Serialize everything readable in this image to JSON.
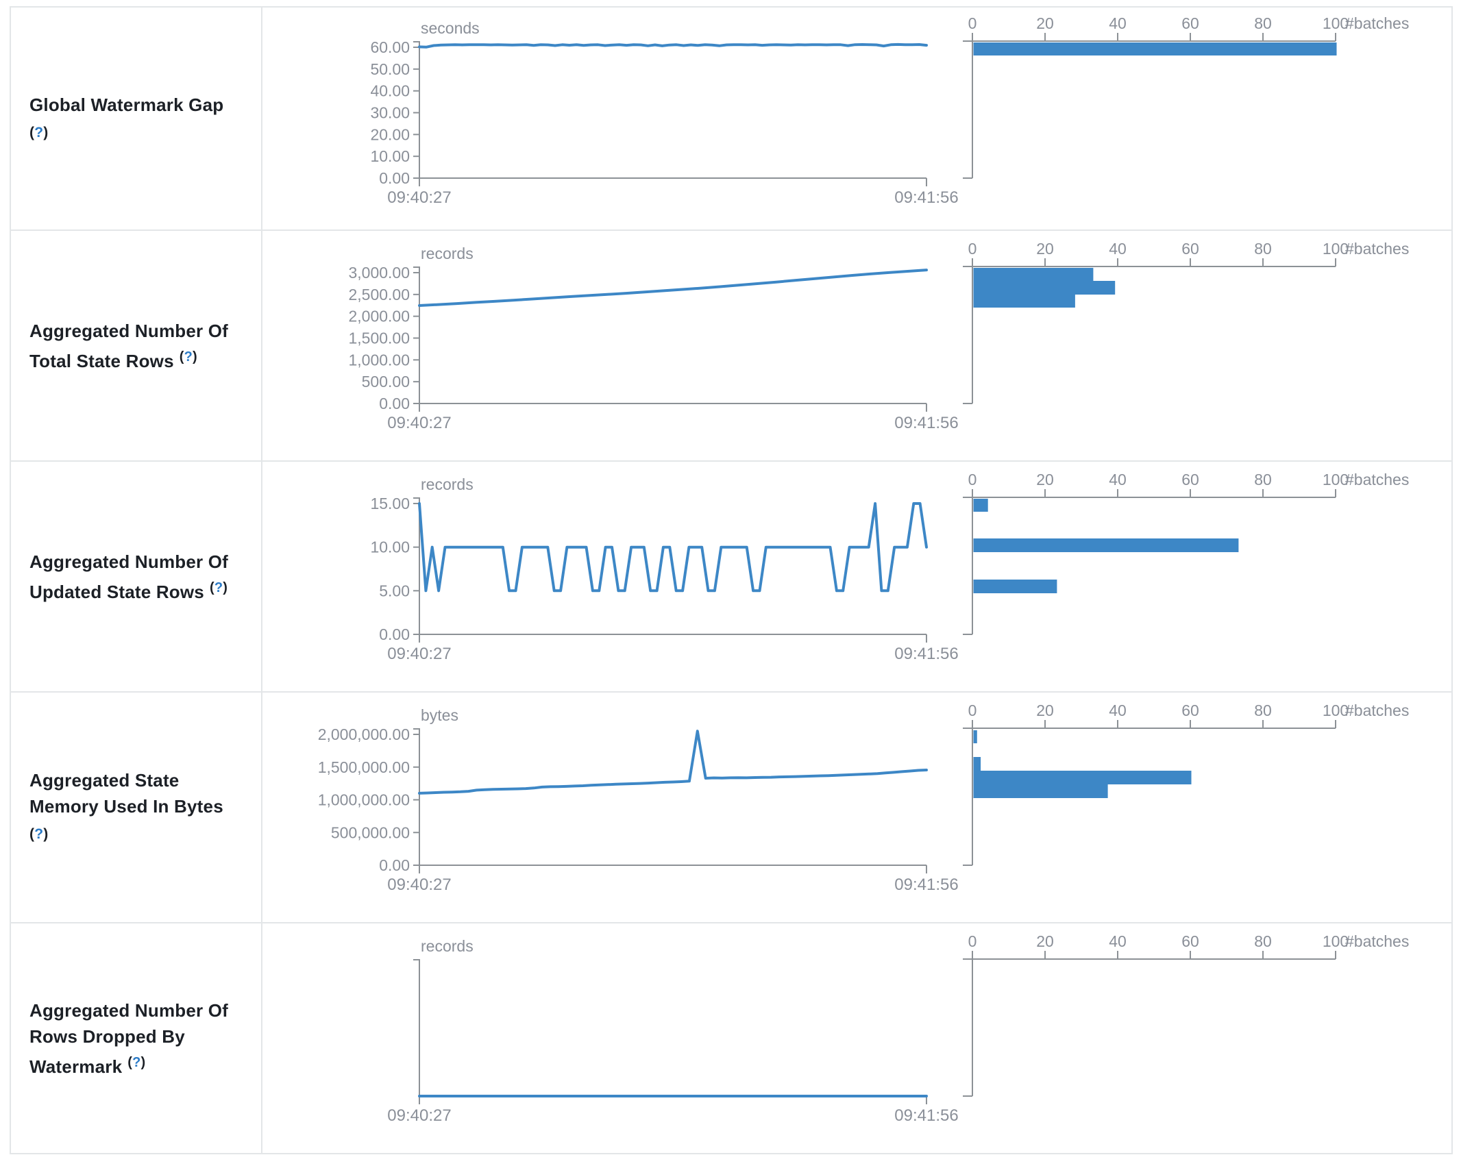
{
  "colors": {
    "accent": "#3d87c6",
    "axis": "#8c9196",
    "tick_text": "#8a8f98",
    "label_text": "#1c2026",
    "help_question": "#2b7bc7",
    "border": "#e3e6e8"
  },
  "help_mark": "?",
  "rows": [
    {
      "label_lines": [
        "Global Watermark Gap"
      ],
      "help_inline": false
    },
    {
      "label_lines": [
        "Aggregated Number Of",
        "Total State Rows"
      ],
      "help_inline": true
    },
    {
      "label_lines": [
        "Aggregated Number Of",
        "Updated State Rows"
      ],
      "help_inline": true
    },
    {
      "label_lines": [
        "Aggregated State",
        "Memory Used In Bytes"
      ],
      "help_inline": false
    },
    {
      "label_lines": [
        "Aggregated Number Of",
        "Rows Dropped By",
        "Watermark"
      ],
      "help_inline": true
    }
  ],
  "chart_data": [
    {
      "type": "line",
      "title": "Global Watermark Gap",
      "unit": "seconds",
      "x_start": "09:40:27",
      "x_end": "09:41:56",
      "y_tick_labels": [
        "60.00",
        "50.00",
        "40.00",
        "30.00",
        "20.00",
        "10.00",
        "0.00"
      ],
      "ymax": 60,
      "values": [
        60.2,
        60.1,
        60.8,
        61.0,
        61.1,
        61.15,
        61.1,
        61.15,
        61.2,
        61.15,
        61.1,
        61.15,
        61.1,
        61.05,
        61.1,
        61.15,
        60.85,
        61.2,
        61.1,
        60.8,
        61.15,
        60.95,
        61.15,
        60.85,
        61.1,
        61.15,
        60.8,
        61.05,
        61.2,
        60.9,
        61.15,
        61.1,
        60.7,
        61.1,
        60.65,
        61.05,
        61.15,
        60.8,
        61.1,
        60.85,
        61.15,
        61.0,
        60.7,
        61.1,
        61.15,
        61.2,
        61.1,
        61.15,
        60.9,
        61.1,
        61.15,
        61.1,
        61.05,
        61.15,
        61.1,
        61.2,
        61.15,
        61.1,
        61.2,
        61.15,
        60.75,
        61.2,
        61.25,
        61.2,
        61.1,
        60.6,
        61.15,
        61.3,
        61.2,
        61.15,
        61.25,
        60.9
      ],
      "histogram": {
        "axis_ticks": [
          "0",
          "20",
          "40",
          "60",
          "80",
          "100"
        ],
        "axis_max": 100,
        "axis_label": "#batches",
        "bars": [
          {
            "count": 100,
            "top_pct": 1,
            "height_pct": 9.5
          }
        ]
      }
    },
    {
      "type": "line",
      "title": "Aggregated Number Of Total State Rows",
      "unit": "records",
      "x_start": "09:40:27",
      "x_end": "09:41:56",
      "y_tick_labels": [
        "3,000.00",
        "2,500.00",
        "2,000.00",
        "1,500.00",
        "1,000.00",
        "500.00",
        "0.00"
      ],
      "ymax": 3000,
      "values": [
        2246,
        2268,
        2292,
        2318,
        2342,
        2368,
        2396,
        2424,
        2450,
        2475,
        2500,
        2528,
        2556,
        2585,
        2615,
        2645,
        2678,
        2712,
        2748,
        2785,
        2822,
        2860,
        2898,
        2935,
        2970,
        3002,
        3032,
        3062
      ],
      "histogram": {
        "axis_ticks": [
          "0",
          "20",
          "40",
          "60",
          "80",
          "100"
        ],
        "axis_max": 100,
        "axis_label": "#batches",
        "bars": [
          {
            "count": 33,
            "top_pct": 1,
            "height_pct": 9.5
          },
          {
            "count": 39,
            "top_pct": 10.5,
            "height_pct": 10
          },
          {
            "count": 28,
            "top_pct": 20.5,
            "height_pct": 9.5
          }
        ]
      }
    },
    {
      "type": "line",
      "title": "Aggregated Number Of Updated State Rows",
      "unit": "records",
      "x_start": "09:40:27",
      "x_end": "09:41:56",
      "y_tick_labels": [
        "15.00",
        "10.00",
        "5.00",
        "0.00"
      ],
      "ymax": 15,
      "values": [
        15,
        5,
        10,
        5,
        10,
        10,
        10,
        10,
        10,
        10,
        10,
        10,
        10,
        10,
        5,
        5,
        10,
        10,
        10,
        10,
        10,
        5,
        5,
        10,
        10,
        10,
        10,
        5,
        5,
        10,
        10,
        5,
        5,
        10,
        10,
        10,
        5,
        5,
        10,
        10,
        5,
        5,
        10,
        10,
        10,
        5,
        5,
        10,
        10,
        10,
        10,
        10,
        5,
        5,
        10,
        10,
        10,
        10,
        10,
        10,
        10,
        10,
        10,
        10,
        10,
        5,
        5,
        10,
        10,
        10,
        10,
        15,
        5,
        5,
        10,
        10,
        10,
        15,
        15,
        10
      ],
      "histogram": {
        "axis_ticks": [
          "0",
          "20",
          "40",
          "60",
          "80",
          "100"
        ],
        "axis_max": 100,
        "axis_label": "#batches",
        "bars": [
          {
            "count": 4,
            "top_pct": 1,
            "height_pct": 9.5
          },
          {
            "count": 73,
            "top_pct": 30,
            "height_pct": 10
          },
          {
            "count": 23,
            "top_pct": 60,
            "height_pct": 10
          }
        ]
      }
    },
    {
      "type": "line",
      "title": "Aggregated State Memory Used In Bytes",
      "unit": "bytes",
      "x_start": "09:40:27",
      "x_end": "09:41:56",
      "y_tick_labels": [
        "2,000,000.00",
        "1,500,000.00",
        "1,000,000.00",
        "500,000.00",
        "0.00"
      ],
      "ymax": 2000000,
      "values": [
        1100000,
        1105000,
        1110000,
        1115000,
        1118000,
        1122000,
        1130000,
        1148000,
        1155000,
        1160000,
        1162000,
        1165000,
        1168000,
        1172000,
        1180000,
        1195000,
        1200000,
        1202000,
        1205000,
        1210000,
        1215000,
        1222000,
        1228000,
        1232000,
        1238000,
        1242000,
        1246000,
        1250000,
        1255000,
        1262000,
        1268000,
        1272000,
        1278000,
        1285000,
        2050000,
        1330000,
        1335000,
        1332000,
        1336000,
        1338000,
        1336000,
        1340000,
        1342000,
        1345000,
        1350000,
        1352000,
        1355000,
        1358000,
        1362000,
        1366000,
        1370000,
        1375000,
        1380000,
        1385000,
        1390000,
        1395000,
        1400000,
        1410000,
        1420000,
        1430000,
        1440000,
        1450000,
        1455000
      ],
      "histogram": {
        "axis_ticks": [
          "0",
          "20",
          "40",
          "60",
          "80",
          "100"
        ],
        "axis_max": 100,
        "axis_label": "#batches",
        "bars": [
          {
            "count": 1,
            "top_pct": 1.5,
            "height_pct": 9.5
          },
          {
            "count": 2,
            "top_pct": 21,
            "height_pct": 10
          },
          {
            "count": 60,
            "top_pct": 31,
            "height_pct": 10
          },
          {
            "count": 37,
            "top_pct": 41,
            "height_pct": 10
          }
        ]
      }
    },
    {
      "type": "line",
      "title": "Aggregated Number Of Rows Dropped By Watermark",
      "unit": "records",
      "x_start": "09:40:27",
      "x_end": "09:41:56",
      "y_tick_labels": [],
      "ymax": null,
      "values": [
        0,
        0,
        0
      ],
      "histogram": {
        "axis_ticks": [
          "0",
          "20",
          "40",
          "60",
          "80",
          "100"
        ],
        "axis_max": 100,
        "axis_label": "#batches",
        "bars": []
      }
    }
  ]
}
